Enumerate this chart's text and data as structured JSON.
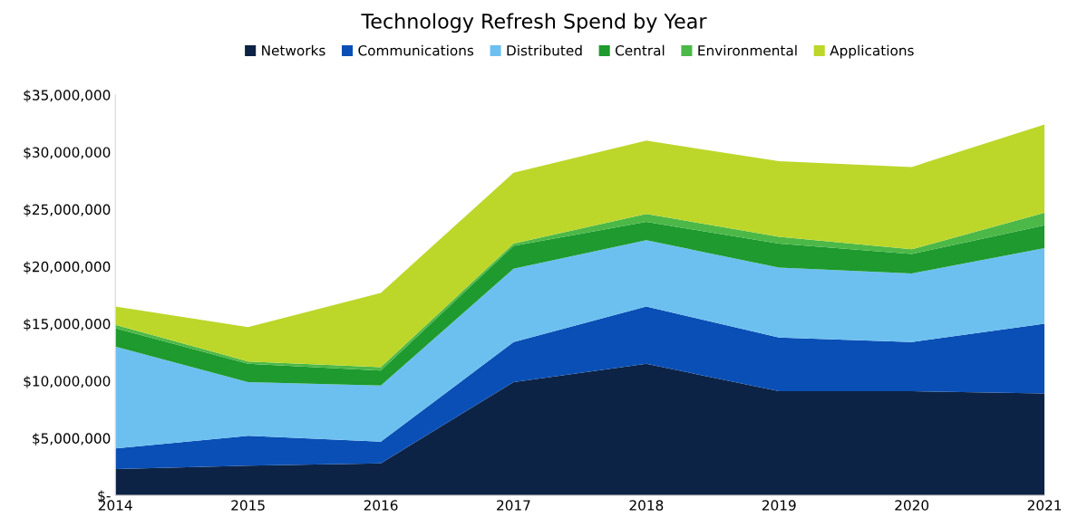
{
  "chart_data": {
    "type": "area",
    "stacked": true,
    "title": "Technology Refresh Spend by Year",
    "categories": [
      "2014",
      "2015",
      "2016",
      "2017",
      "2018",
      "2019",
      "2020",
      "2021"
    ],
    "series": [
      {
        "name": "Networks",
        "color": "#0d2345",
        "values": [
          2300000,
          2600000,
          2800000,
          9900000,
          11500000,
          9100000,
          9100000,
          8900000
        ]
      },
      {
        "name": "Communications",
        "color": "#0a4fb5",
        "values": [
          1800000,
          2600000,
          1900000,
          3500000,
          5000000,
          4700000,
          4300000,
          6100000
        ]
      },
      {
        "name": "Distributed",
        "color": "#6cc0f0",
        "values": [
          8900000,
          4700000,
          4900000,
          6400000,
          5800000,
          6100000,
          6000000,
          6600000
        ]
      },
      {
        "name": "Central",
        "color": "#1e9a2e",
        "values": [
          1600000,
          1600000,
          1300000,
          2000000,
          1600000,
          2100000,
          1700000,
          2000000
        ]
      },
      {
        "name": "Environmental",
        "color": "#4cb848",
        "values": [
          300000,
          200000,
          300000,
          200000,
          700000,
          600000,
          400000,
          1100000
        ]
      },
      {
        "name": "Applications",
        "color": "#bcd72a",
        "values": [
          1600000,
          3000000,
          6500000,
          6200000,
          6400000,
          6600000,
          7200000,
          7700000
        ]
      }
    ],
    "ylim": [
      0,
      35000000
    ],
    "yticks": [
      {
        "value": 0,
        "label": "$-"
      },
      {
        "value": 5000000,
        "label": "$5,000,000"
      },
      {
        "value": 10000000,
        "label": "$10,000,000"
      },
      {
        "value": 15000000,
        "label": "$15,000,000"
      },
      {
        "value": 20000000,
        "label": "$20,000,000"
      },
      {
        "value": 25000000,
        "label": "$25,000,000"
      },
      {
        "value": 30000000,
        "label": "$30,000,000"
      },
      {
        "value": 35000000,
        "label": "$35,000,000"
      }
    ],
    "grid": false,
    "legend": "top"
  }
}
